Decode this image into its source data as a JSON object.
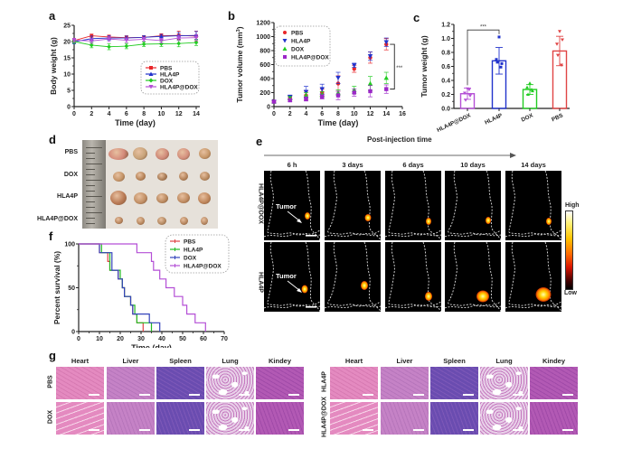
{
  "figure": {
    "panel_labels": [
      "a",
      "b",
      "c",
      "d",
      "e",
      "f",
      "g"
    ]
  },
  "chart_data": [
    {
      "panel": "a",
      "type": "line",
      "xlabel": "Time (day)",
      "ylabel": "Body weight (g)",
      "xlim": [
        0,
        14
      ],
      "ylim": [
        0,
        25
      ],
      "xticks": [
        0,
        2,
        4,
        6,
        8,
        10,
        12,
        14
      ],
      "yticks": [
        0,
        5,
        10,
        15,
        20,
        25
      ],
      "legend_position": "center-right",
      "x": [
        0,
        2,
        4,
        6,
        8,
        10,
        12,
        14
      ],
      "series": [
        {
          "name": "PBS",
          "color": "#e8262a",
          "marker": "square",
          "values": [
            20.3,
            21.8,
            21.4,
            21.2,
            21.3,
            21.8,
            21.9,
            21.7
          ],
          "errors": [
            0.6,
            0.5,
            0.6,
            0.6,
            0.5,
            0.6,
            1.3,
            1.5
          ]
        },
        {
          "name": "HLA4P",
          "color": "#2233cc",
          "marker": "triangle-up",
          "values": [
            19.9,
            20.9,
            21.1,
            21.1,
            21.3,
            21.6,
            21.8,
            21.9
          ],
          "errors": [
            0.6,
            0.8,
            0.7,
            0.6,
            0.5,
            0.6,
            1.0,
            1.2
          ]
        },
        {
          "name": "DOX",
          "color": "#22cc22",
          "marker": "diamond",
          "values": [
            20.0,
            18.9,
            18.4,
            18.6,
            19.2,
            19.3,
            19.4,
            19.7
          ],
          "errors": [
            0.5,
            0.8,
            0.9,
            0.8,
            0.7,
            0.8,
            1.0,
            0.9
          ]
        },
        {
          "name": "HLA4P@DOX",
          "color": "#b44fd6",
          "marker": "triangle-down",
          "values": [
            20.4,
            20.2,
            20.8,
            20.4,
            20.7,
            20.3,
            21.1,
            21.2
          ],
          "errors": [
            0.6,
            0.7,
            0.8,
            0.7,
            0.6,
            0.7,
            0.8,
            0.9
          ]
        }
      ]
    },
    {
      "panel": "b",
      "type": "scatter",
      "xlabel": "Time (day)",
      "ylabel": "Tumor volume (mm",
      "ylabel_sup": "3",
      "ylabel_end": ")",
      "xlim": [
        0,
        16
      ],
      "ylim": [
        0,
        1200
      ],
      "xticks": [
        0,
        2,
        4,
        6,
        8,
        10,
        12,
        14,
        16
      ],
      "yticks": [
        0,
        200,
        400,
        600,
        800,
        1000,
        1200
      ],
      "legend_position": "top-left",
      "significance": "***",
      "x": [
        0,
        2,
        4,
        6,
        8,
        10,
        12,
        14
      ],
      "series": [
        {
          "name": "PBS",
          "color": "#e8262a",
          "marker": "circle",
          "values": [
            70,
            130,
            160,
            200,
            330,
            540,
            700,
            890
          ],
          "errors": [
            15,
            30,
            60,
            50,
            110,
            50,
            80,
            80
          ]
        },
        {
          "name": "HLA4P",
          "color": "#2233cc",
          "marker": "triangle-down",
          "values": [
            70,
            135,
            210,
            250,
            410,
            590,
            720,
            920
          ],
          "errors": [
            15,
            30,
            80,
            70,
            80,
            30,
            60,
            60
          ]
        },
        {
          "name": "DOX",
          "color": "#22cc22",
          "marker": "triangle-up",
          "values": [
            70,
            120,
            160,
            175,
            200,
            240,
            330,
            410
          ],
          "errors": [
            15,
            25,
            40,
            40,
            40,
            50,
            100,
            80
          ]
        },
        {
          "name": "HLA4P@DOX",
          "color": "#9c27c8",
          "marker": "square",
          "values": [
            70,
            90,
            110,
            140,
            160,
            200,
            220,
            250
          ],
          "errors": [
            15,
            20,
            30,
            30,
            60,
            50,
            80,
            60
          ]
        }
      ]
    },
    {
      "panel": "c",
      "type": "bar",
      "xlabel": "",
      "ylabel": "Tumor weight (g)",
      "ylim": [
        0,
        1.2
      ],
      "yticks": [
        "0.0",
        "0.2",
        "0.4",
        "0.6",
        "0.8",
        "1.0",
        "1.2"
      ],
      "categories": [
        "HLA4P@DOX",
        "HLA4P",
        "DOX",
        "PBS"
      ],
      "colors": [
        "#b44fd6",
        "#2233cc",
        "#22cc22",
        "#e04444"
      ],
      "values": [
        0.21,
        0.68,
        0.27,
        0.82
      ],
      "errors": [
        0.08,
        0.19,
        0.07,
        0.21
      ],
      "points": [
        [
          0.28,
          0.22,
          0.18,
          0.12,
          0.27
        ],
        [
          1.02,
          0.7,
          0.64,
          0.66,
          0.59
        ],
        [
          0.36,
          0.3,
          0.25,
          0.2,
          0.27
        ],
        [
          1.1,
          0.92,
          0.98,
          0.76,
          0.62
        ]
      ],
      "significance": {
        "label": "***",
        "between": [
          "HLA4P@DOX",
          "HLA4P"
        ]
      }
    },
    {
      "panel": "f",
      "type": "line",
      "xlabel": "Time (day)",
      "ylabel": "Percent survival (%)",
      "xlim": [
        0,
        70
      ],
      "ylim": [
        0,
        100
      ],
      "xticks": [
        0,
        10,
        20,
        30,
        40,
        50,
        60,
        70
      ],
      "yticks": [
        0,
        50,
        100
      ],
      "legend_position": "top-right",
      "series": [
        {
          "name": "PBS",
          "color": "#e04444",
          "steps": [
            [
              0,
              100
            ],
            [
              10,
              100
            ],
            [
              10,
              90
            ],
            [
              14,
              90
            ],
            [
              14,
              80
            ],
            [
              15,
              80
            ],
            [
              15,
              70
            ],
            [
              19,
              70
            ],
            [
              19,
              60
            ],
            [
              21,
              60
            ],
            [
              21,
              50
            ],
            [
              22,
              50
            ],
            [
              22,
              40
            ],
            [
              25,
              40
            ],
            [
              25,
              30
            ],
            [
              26,
              30
            ],
            [
              26,
              20
            ],
            [
              28,
              20
            ],
            [
              28,
              10
            ],
            [
              31,
              10
            ],
            [
              31,
              0
            ]
          ]
        },
        {
          "name": "HLA4P",
          "color": "#22bb22",
          "steps": [
            [
              0,
              100
            ],
            [
              11,
              100
            ],
            [
              11,
              90
            ],
            [
              15,
              90
            ],
            [
              15,
              70
            ],
            [
              20,
              70
            ],
            [
              20,
              60
            ],
            [
              21,
              60
            ],
            [
              21,
              50
            ],
            [
              22,
              50
            ],
            [
              22,
              40
            ],
            [
              25,
              40
            ],
            [
              25,
              30
            ],
            [
              27,
              30
            ],
            [
              27,
              20
            ],
            [
              28,
              20
            ],
            [
              28,
              10
            ],
            [
              35,
              10
            ],
            [
              35,
              0
            ]
          ]
        },
        {
          "name": "DOX",
          "color": "#3344bb",
          "steps": [
            [
              0,
              100
            ],
            [
              10,
              100
            ],
            [
              10,
              90
            ],
            [
              16,
              90
            ],
            [
              16,
              70
            ],
            [
              19,
              70
            ],
            [
              19,
              60
            ],
            [
              21,
              60
            ],
            [
              21,
              50
            ],
            [
              22,
              50
            ],
            [
              22,
              40
            ],
            [
              25,
              40
            ],
            [
              25,
              30
            ],
            [
              26,
              30
            ],
            [
              26,
              20
            ],
            [
              34,
              20
            ],
            [
              34,
              10
            ],
            [
              39,
              10
            ],
            [
              39,
              0
            ]
          ]
        },
        {
          "name": "HLA4P@DOX",
          "color": "#b44fd6",
          "steps": [
            [
              0,
              100
            ],
            [
              28,
              100
            ],
            [
              28,
              90
            ],
            [
              35,
              90
            ],
            [
              35,
              80
            ],
            [
              36,
              80
            ],
            [
              36,
              70
            ],
            [
              39,
              70
            ],
            [
              39,
              60
            ],
            [
              42,
              60
            ],
            [
              42,
              50
            ],
            [
              46,
              50
            ],
            [
              46,
              40
            ],
            [
              50,
              40
            ],
            [
              50,
              30
            ],
            [
              52,
              30
            ],
            [
              52,
              20
            ],
            [
              56,
              20
            ],
            [
              56,
              10
            ],
            [
              61,
              10
            ],
            [
              61,
              0
            ]
          ]
        }
      ]
    }
  ],
  "panel_d": {
    "rows": [
      "PBS",
      "DOX",
      "HLA4P",
      "HLA4P@DOX"
    ]
  },
  "panel_e": {
    "header": "Post-injection time",
    "timepoints": [
      "6 h",
      "3 days",
      "6 days",
      "10 days",
      "14 days"
    ],
    "rows": [
      "HLA4P@DOX",
      "HLA4P"
    ],
    "annotation": "Tumor",
    "colorbar": {
      "high": "High",
      "low": "Low"
    }
  },
  "panel_g": {
    "organs": [
      "Heart",
      "Liver",
      "Spleen",
      "Lung",
      "Kindey"
    ],
    "left_rows": [
      "PBS",
      "DOX"
    ],
    "right_rows": [
      "HLA4P",
      "HLA4P@DOX"
    ]
  }
}
